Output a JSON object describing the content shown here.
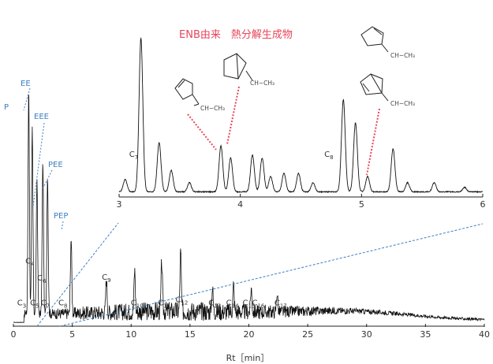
{
  "chart_data": [
    {
      "type": "line",
      "id": "main",
      "xlabel": "Rt［min］",
      "xlim": [
        0,
        40
      ],
      "xticks": [
        0,
        5,
        10,
        15,
        20,
        25,
        30,
        35,
        40
      ],
      "grid": false,
      "peaks": [
        {
          "t": 1.3,
          "h": 0.93
        },
        {
          "t": 1.6,
          "h": 0.76
        },
        {
          "t": 2.0,
          "h": 0.55
        },
        {
          "t": 2.5,
          "h": 0.62
        },
        {
          "t": 2.9,
          "h": 0.57
        },
        {
          "t": 4.9,
          "h": 0.31
        },
        {
          "t": 7.9,
          "h": 0.14
        },
        {
          "t": 10.3,
          "h": 0.17
        },
        {
          "t": 12.6,
          "h": 0.2
        },
        {
          "t": 14.2,
          "h": 0.24
        },
        {
          "t": 16.9,
          "h": 0.1
        },
        {
          "t": 18.7,
          "h": 0.11
        },
        {
          "t": 20.2,
          "h": 0.1
        },
        {
          "t": 22.4,
          "h": 0.08
        }
      ],
      "peak_labels": [
        {
          "t": 1.4,
          "name": "C",
          "sub": "4"
        },
        {
          "t": 0.7,
          "name": "C",
          "sub": "3"
        },
        {
          "t": 1.8,
          "name": "C",
          "sub": "5"
        },
        {
          "t": 2.4,
          "name": "C",
          "sub": "6"
        },
        {
          "t": 2.7,
          "name": "C",
          "sub": "7"
        },
        {
          "t": 4.2,
          "name": "C",
          "sub": "8"
        },
        {
          "t": 7.9,
          "name": "C",
          "sub": "9"
        },
        {
          "t": 10.5,
          "name": "C",
          "sub": "10"
        },
        {
          "t": 12.8,
          "name": "C",
          "sub": "11"
        },
        {
          "t": 14.3,
          "name": "C",
          "sub": "12"
        },
        {
          "t": 17.1,
          "name": "C",
          "sub": "13"
        },
        {
          "t": 18.6,
          "name": "C",
          "sub": "14"
        },
        {
          "t": 20.0,
          "name": "C",
          "sub": "15"
        },
        {
          "t": 20.8,
          "name": "C",
          "sub": "16"
        },
        {
          "t": 22.7,
          "name": "C",
          "sub": "17"
        }
      ],
      "series_labels": [
        "P",
        "EE",
        "EEE",
        "PEE",
        "PEP"
      ]
    },
    {
      "type": "line",
      "id": "inset",
      "title": "ENB由来　熱分解生成物",
      "xlim": [
        3,
        6
      ],
      "xticks": [
        3,
        4,
        5,
        6
      ],
      "grid": false,
      "peaks": [
        {
          "t": 3.05,
          "h": 0.08
        },
        {
          "t": 3.18,
          "h": 1.0
        },
        {
          "t": 3.33,
          "h": 0.32
        },
        {
          "t": 3.43,
          "h": 0.14
        },
        {
          "t": 3.58,
          "h": 0.06
        },
        {
          "t": 3.84,
          "h": 0.3
        },
        {
          "t": 3.92,
          "h": 0.22
        },
        {
          "t": 4.1,
          "h": 0.24
        },
        {
          "t": 4.18,
          "h": 0.22
        },
        {
          "t": 4.25,
          "h": 0.1
        },
        {
          "t": 4.36,
          "h": 0.12
        },
        {
          "t": 4.48,
          "h": 0.12
        },
        {
          "t": 4.6,
          "h": 0.06
        },
        {
          "t": 4.85,
          "h": 0.6
        },
        {
          "t": 4.95,
          "h": 0.45
        },
        {
          "t": 5.05,
          "h": 0.1
        },
        {
          "t": 5.26,
          "h": 0.28
        },
        {
          "t": 5.38,
          "h": 0.06
        },
        {
          "t": 5.6,
          "h": 0.06
        },
        {
          "t": 5.85,
          "h": 0.03
        }
      ],
      "peak_labels": [
        {
          "t": 3.12,
          "name": "C",
          "sub": "7"
        },
        {
          "t": 4.73,
          "name": "C",
          "sub": "8"
        }
      ],
      "structure_labels": [
        "CH−CH₃",
        "CH−CH₃",
        "CH−CH₃",
        "CH−CH₃"
      ]
    }
  ]
}
